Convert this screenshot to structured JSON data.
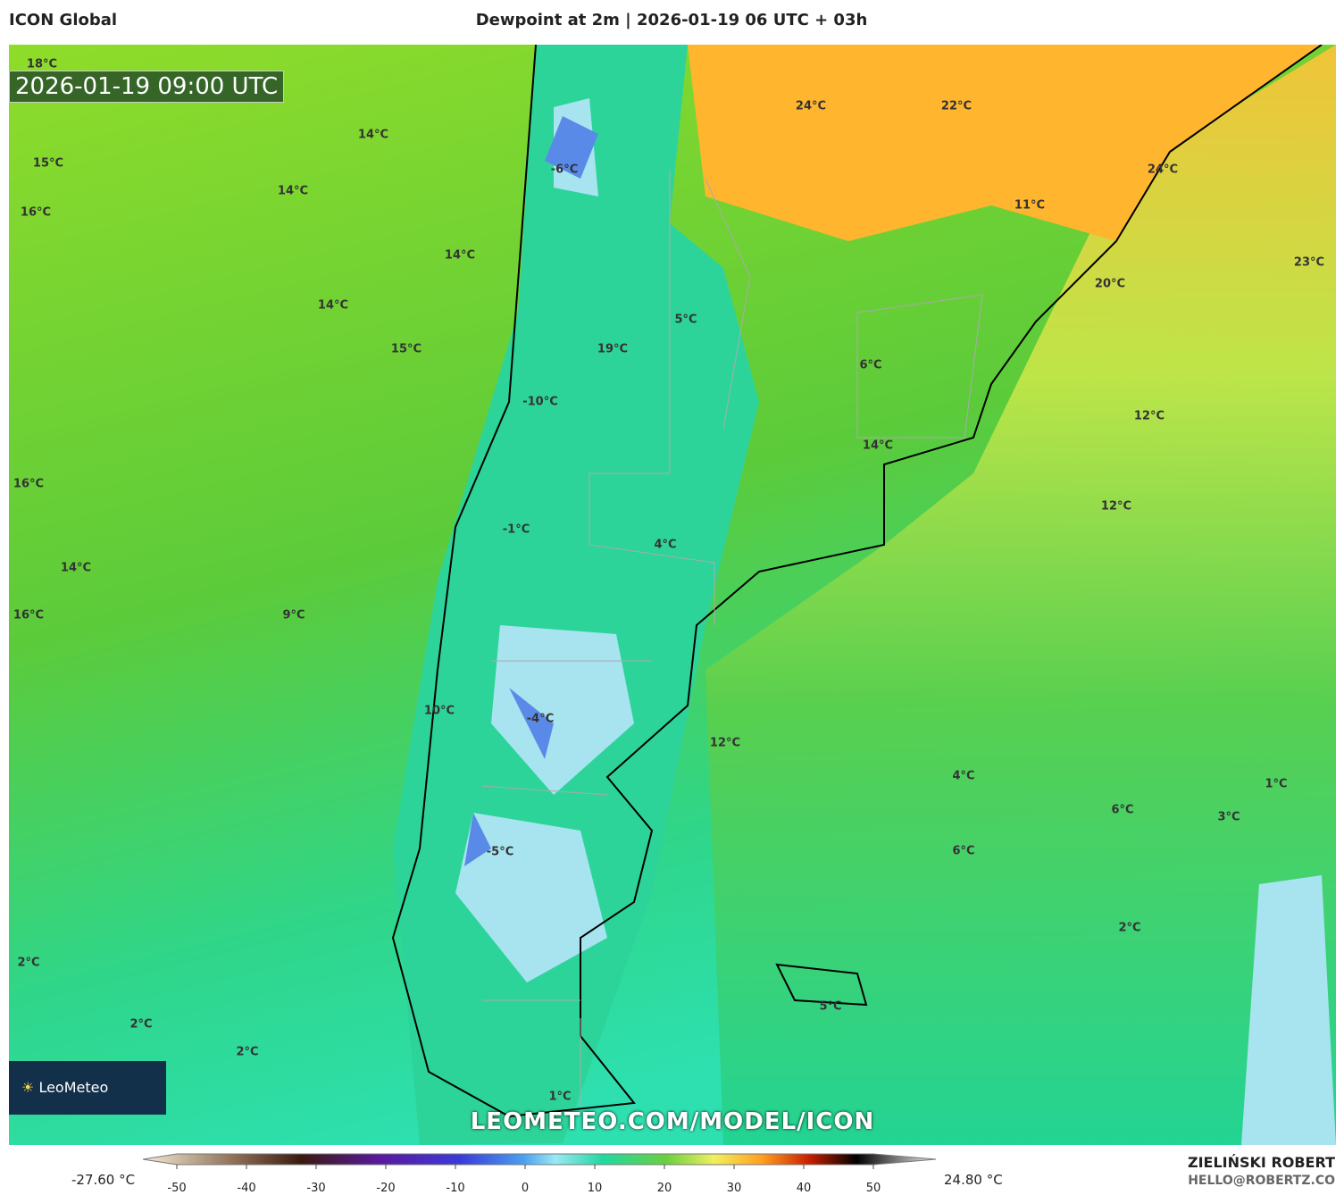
{
  "header": {
    "model": "ICON Global",
    "title": "Dewpoint at 2m | 2026-01-19 06 UTC + 03h",
    "timestamp": "2026-01-19 09:00 UTC"
  },
  "map": {
    "labels": [
      "18°C",
      "14°C",
      "15°C",
      "14°C",
      "16°C",
      "14°C",
      "14°C",
      "15°C",
      "24°C",
      "22°C",
      "24°C",
      "11°C",
      "23°C",
      "20°C",
      "-6°C",
      "5°C",
      "19°C",
      "6°C",
      "-10°C",
      "12°C",
      "14°C",
      "16°C",
      "12°C",
      "-1°C",
      "4°C",
      "14°C",
      "16°C",
      "9°C",
      "-4°C",
      "10°C",
      "12°C",
      "4°C",
      "1°C",
      "6°C",
      "3°C",
      "-5°C",
      "6°C",
      "2°C",
      "2°C",
      "2°C",
      "5°C",
      "2°C",
      "1°C"
    ],
    "watermark": "LEOMETEO.COM/MODEL/ICON",
    "logo": "LeoMeteo"
  },
  "colorbar": {
    "min_label": "-27.60 °C",
    "max_label": "24.80 °C",
    "ticks": [
      -50,
      -40,
      -30,
      -20,
      -10,
      0,
      10,
      20,
      30,
      40,
      50
    ],
    "range": [
      -55,
      55
    ]
  },
  "footer": {
    "author": "ZIELIŃSKI ROBERT",
    "email": "HELLO@ROBERTZ.CO"
  }
}
